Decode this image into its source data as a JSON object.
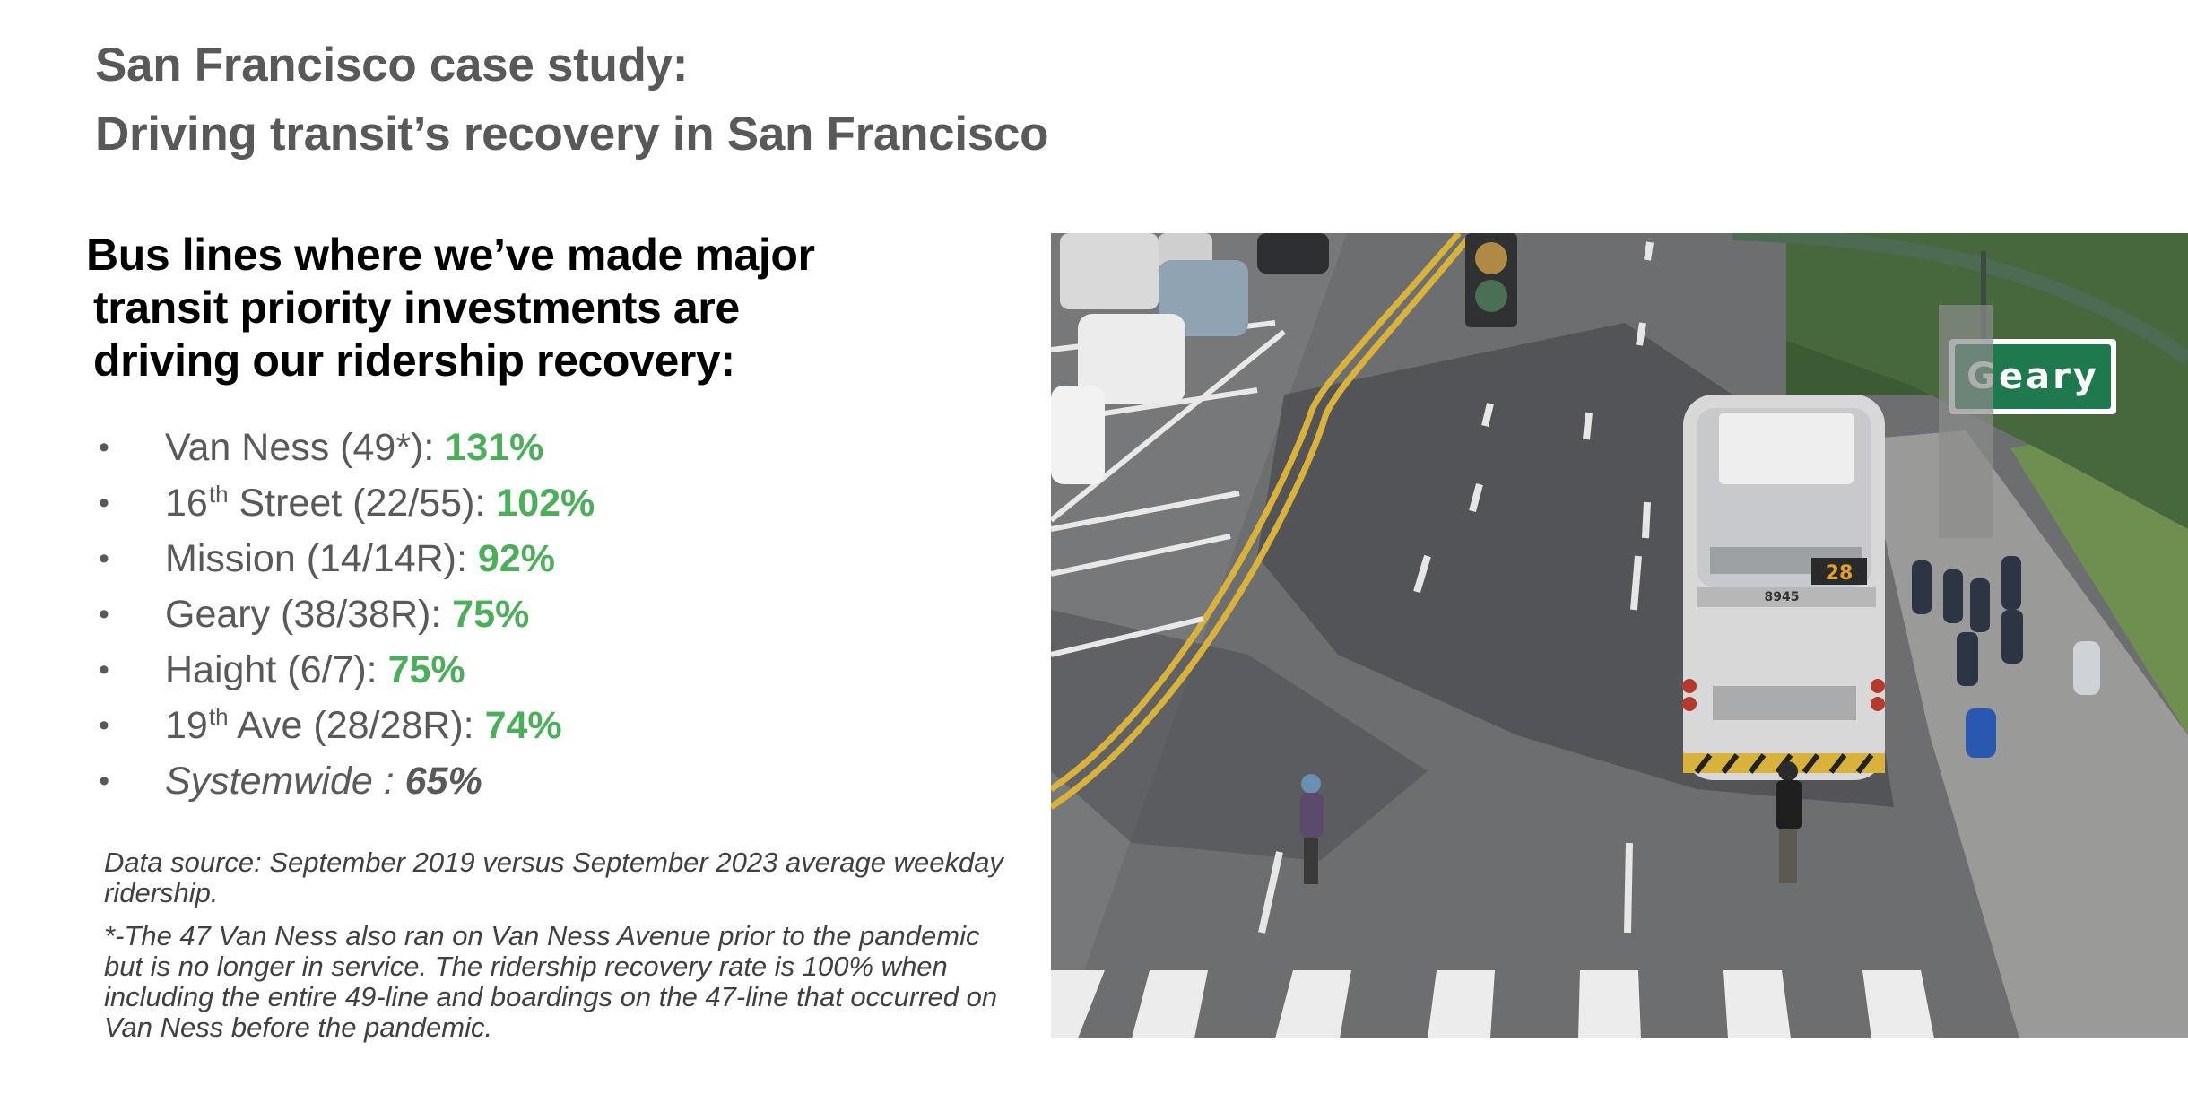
{
  "title": {
    "line1": "San Francisco case study:",
    "line2": "Driving transit’s recovery in San Francisco"
  },
  "subheading": {
    "line1": "Bus lines where we’ve made major",
    "line2": "transit priority investments are",
    "line3": "driving our ridership recovery:"
  },
  "bullets": [
    {
      "label": "Van Ness (49*): ",
      "value": "131%"
    },
    {
      "label_pre": "16",
      "sup": "th",
      "label_post": " Street (22/55): ",
      "value": "102%"
    },
    {
      "label": "Mission (14/14R): ",
      "value": "92%"
    },
    {
      "label": "Geary (38/38R): ",
      "value": "75%"
    },
    {
      "label": "Haight (6/7): ",
      "value": "75%"
    },
    {
      "label_pre": "19",
      "sup": "th",
      "label_post": " Ave (28/28R): ",
      "value": "74%"
    },
    {
      "label": "Systemwide : ",
      "value": "65%"
    }
  ],
  "bullet_glyph": "•",
  "notes": {
    "source": "Data source: September 2019 versus September 2023 average weekday ridership.",
    "footnote": "*-The 47 Van Ness also ran on Van Ness Avenue prior to the pandemic but is no longer in service. The ridership recovery rate is 100% when including the entire 49-line and boardings on the 47-line that occurred on Van Ness before the pandemic."
  },
  "photo": {
    "street_sign": "Geary",
    "bus_route_display": "28",
    "bus_number": "8945"
  },
  "colors": {
    "title": "#595959",
    "value_green": "#4cae5a",
    "sign_green": "#1e7a4e"
  }
}
